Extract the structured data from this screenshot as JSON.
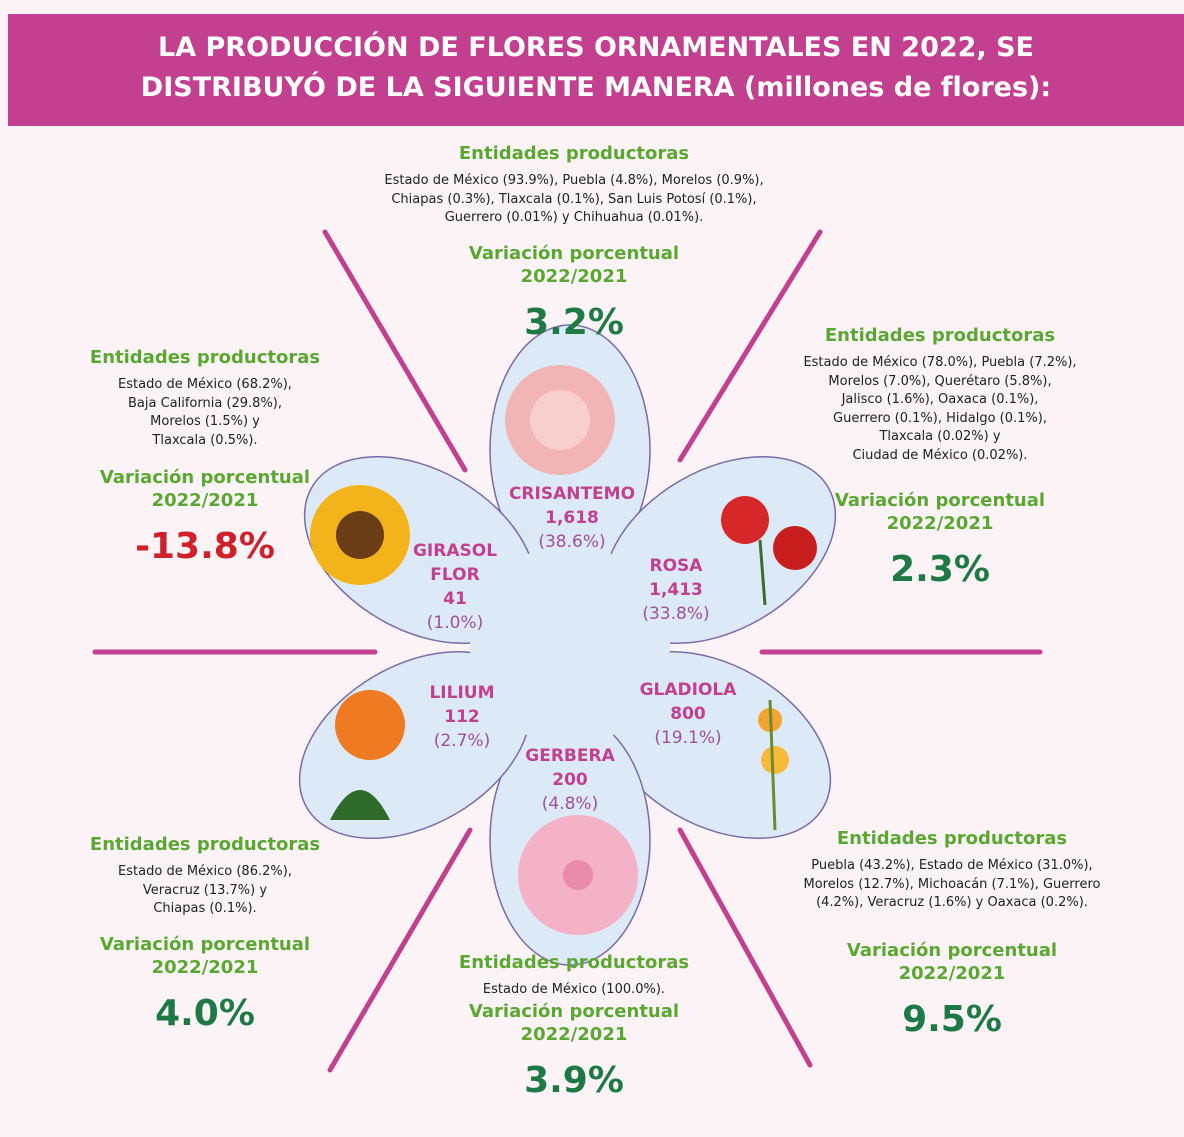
{
  "header": {
    "title": "LA PRODUCCIÓN DE FLORES ORNAMENTALES EN 2022, SE DISTRIBUYÓ DE LA SIGUIENTE MANERA (millones de flores):"
  },
  "flowers": [
    {
      "name": "CRISANTEMO",
      "production": "1,618",
      "share": "(38.6%)",
      "entities_title": "Entidades productoras",
      "entities": [
        "Estado de México (93.9%), Puebla (4.8%), Morelos (0.9%),",
        "Chiapas (0.3%), Tlaxcala (0.1%), San Luis Potosí (0.1%),",
        "Guerrero (0.01%) y Chihuahua (0.01%)."
      ],
      "variation_title": "Variación porcentual",
      "variation_period": "2022/2021",
      "variation": "3.2%"
    },
    {
      "name": "ROSA",
      "production": "1,413",
      "share": "(33.8%)",
      "entities_title": "Entidades productoras",
      "entities": [
        "Estado de México (78.0%), Puebla (7.2%),",
        "Morelos (7.0%), Querétaro (5.8%),",
        "Jalisco (1.6%), Oaxaca (0.1%),",
        "Guerrero (0.1%), Hidalgo (0.1%),",
        "Tlaxcala (0.02%) y",
        "Ciudad de México (0.02%)."
      ],
      "variation_title": "Variación porcentual",
      "variation_period": "2022/2021",
      "variation": "2.3%"
    },
    {
      "name": "GLADIOLA",
      "production": "800",
      "share": "(19.1%)",
      "entities_title": "Entidades productoras",
      "entities": [
        "Puebla (43.2%), Estado de México (31.0%),",
        "Morelos (12.7%), Michoacán (7.1%), Guerrero",
        "(4.2%), Veracruz (1.6%) y Oaxaca (0.2%)."
      ],
      "variation_title": "Variación porcentual",
      "variation_period": "2022/2021",
      "variation": "9.5%"
    },
    {
      "name": "GERBERA",
      "production": "200",
      "share": "(4.8%)",
      "entities_title": "Entidades productoras",
      "entities": [
        "Estado de México (100.0%)."
      ],
      "variation_title": "Variación porcentual",
      "variation_period": "2022/2021",
      "variation": "3.9%"
    },
    {
      "name": "LILIUM",
      "production": "112",
      "share": "(2.7%)",
      "entities_title": "Entidades productoras",
      "entities": [
        "Estado de México (86.2%),",
        "Veracruz (13.7%) y",
        "Chiapas (0.1%)."
      ],
      "variation_title": "Variación porcentual",
      "variation_period": "2022/2021",
      "variation": "4.0%"
    },
    {
      "name": "GIRASOL FLOR",
      "production": "41",
      "share": "(1.0%)",
      "entities_title": "Entidades productoras",
      "entities": [
        "Estado de México (68.2%),",
        "Baja California (29.8%),",
        "Morelos (1.5%) y",
        "Tlaxcala (0.5%)."
      ],
      "variation_title": "Variación porcentual",
      "variation_period": "2022/2021",
      "variation": "-13.8%"
    }
  ]
}
